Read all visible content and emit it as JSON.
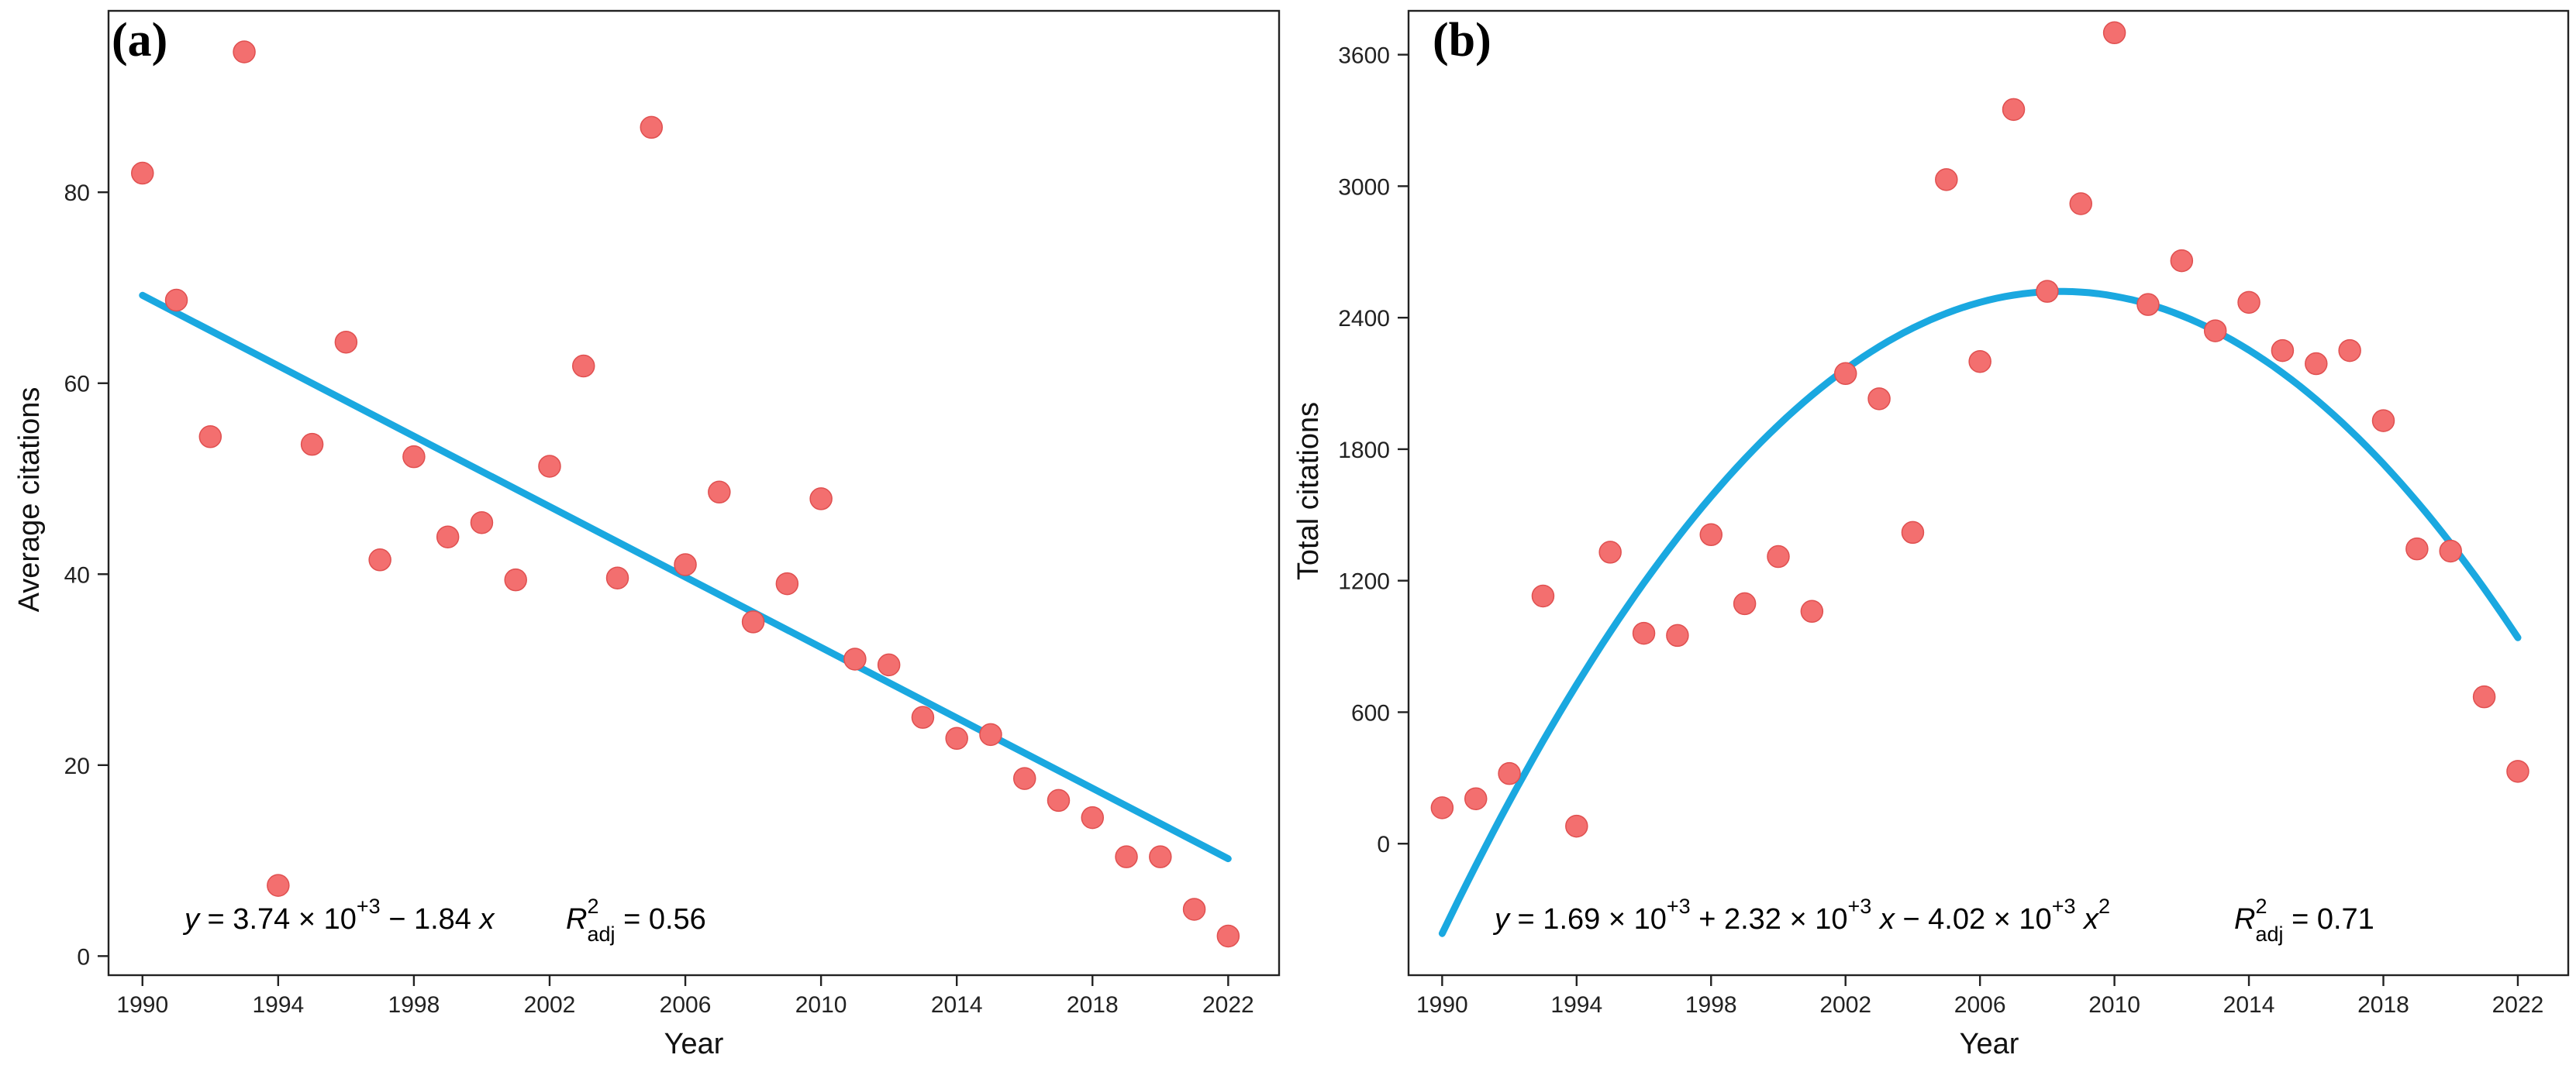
{
  "chart_data": [
    {
      "type": "scatter",
      "panel_label": "(a)",
      "xlabel": "Year",
      "ylabel": "Average citations",
      "xlim": [
        1989,
        2023.5
      ],
      "ylim": [
        -2,
        99
      ],
      "xticks": [
        1990,
        1994,
        1998,
        2002,
        2006,
        2010,
        2014,
        2018,
        2022
      ],
      "yticks": [
        0,
        20,
        40,
        60,
        80
      ],
      "x": [
        1990,
        1991,
        1992,
        1993,
        1994,
        1995,
        1996,
        1997,
        1998,
        1999,
        2000,
        2001,
        2002,
        2003,
        2004,
        2005,
        2006,
        2007,
        2008,
        2009,
        2010,
        2011,
        2012,
        2013,
        2014,
        2015,
        2016,
        2017,
        2018,
        2019,
        2020,
        2021,
        2022
      ],
      "y": [
        82.0,
        68.7,
        54.4,
        94.7,
        7.4,
        53.6,
        64.3,
        41.5,
        52.3,
        43.9,
        45.4,
        39.4,
        51.3,
        61.8,
        39.6,
        86.8,
        41.0,
        48.6,
        35.0,
        39.0,
        47.9,
        31.1,
        30.5,
        25.0,
        22.8,
        23.2,
        18.6,
        16.3,
        14.5,
        10.4,
        10.4,
        4.9,
        2.1
      ],
      "fit": {
        "type": "linear",
        "intercept": 3740,
        "slope": -1.84,
        "x_range": [
          1990,
          2022
        ],
        "y_range": [
          69.2,
          10.2
        ]
      },
      "equation": {
        "y": "y",
        "eq": " = 3.74 × 10",
        "exp1": "+3",
        "rest": " − 1.84 ",
        "x": "x",
        "r_letter": "R",
        "r_sup": "2",
        "r_sub": "adj",
        "r_value": " = 0.56"
      }
    },
    {
      "type": "scatter",
      "panel_label": "(b)",
      "xlabel": "Year",
      "ylabel": "Total citations",
      "xlim": [
        1989,
        2023.5
      ],
      "ylim": [
        -600,
        3800
      ],
      "xticks": [
        1990,
        1994,
        1998,
        2002,
        2006,
        2010,
        2014,
        2018,
        2022
      ],
      "yticks": [
        0,
        600,
        1200,
        1800,
        2400,
        3000,
        3600
      ],
      "x": [
        1990,
        1991,
        1992,
        1993,
        1994,
        1995,
        1996,
        1997,
        1998,
        1999,
        2000,
        2001,
        2002,
        2003,
        2004,
        2005,
        2006,
        2007,
        2008,
        2009,
        2010,
        2011,
        2012,
        2013,
        2014,
        2015,
        2016,
        2017,
        2018,
        2019,
        2020,
        2021,
        2022
      ],
      "y": [
        164,
        205,
        320,
        1130,
        80,
        1330,
        960,
        950,
        1410,
        1095,
        1310,
        1060,
        2145,
        2030,
        1420,
        3030,
        2200,
        3350,
        2520,
        2920,
        3700,
        2460,
        2660,
        2340,
        2470,
        2250,
        2190,
        2250,
        1930,
        1345,
        1335,
        670,
        330
      ],
      "fit": {
        "type": "quadratic",
        "vertex_x": 2008.4,
        "vertex_y": 2520,
        "endpoints": [
          [
            1990,
            -410
          ],
          [
            2022,
            940
          ]
        ]
      },
      "equation": {
        "y": "y",
        "eq": " = 1.69 × 10",
        "exp1": "+3",
        "mid": " + 2.32 × 10",
        "exp2": "+3",
        "x1": " x",
        "minus": " − 4.02 × 10",
        "exp3": "+3",
        "x2": " x",
        "x2_sup": "2",
        "r_letter": "R",
        "r_sup": "2",
        "r_sub": "adj",
        "r_value": " = 0.71"
      }
    }
  ]
}
